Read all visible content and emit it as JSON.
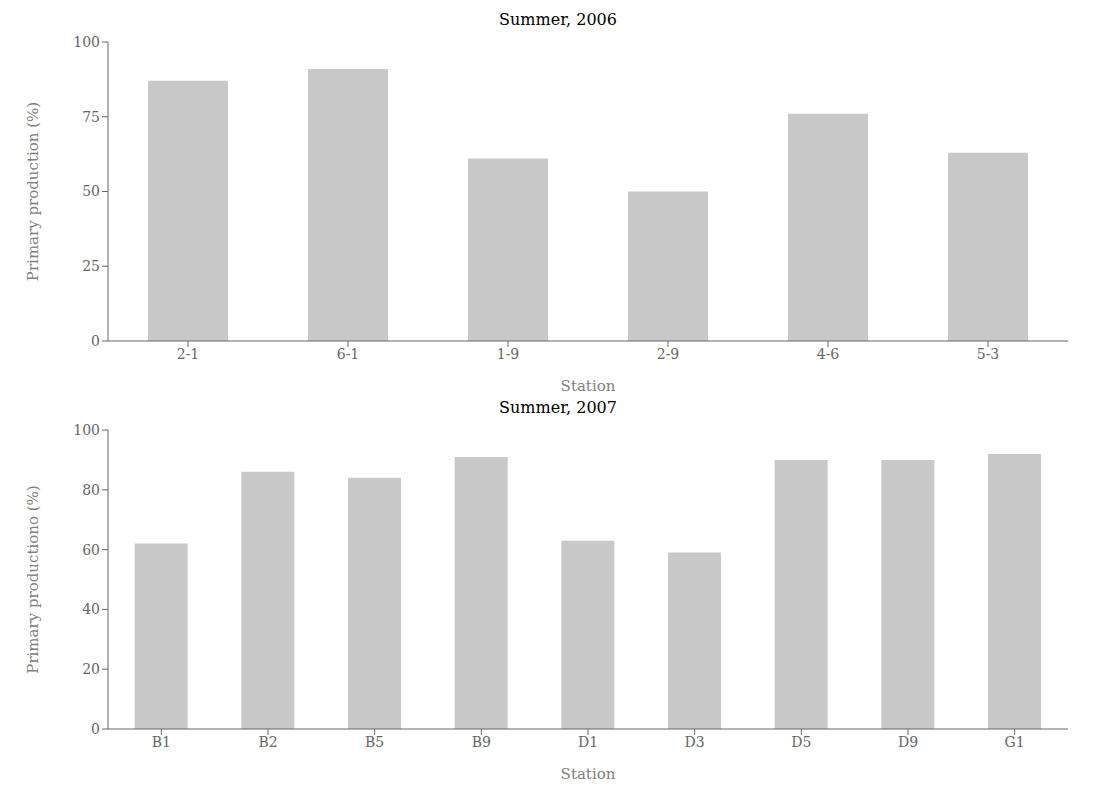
{
  "chart_data": [
    {
      "type": "bar",
      "title": "Summer, 2006",
      "categories": [
        "2-1",
        "6-1",
        "1-9",
        "2-9",
        "4-6",
        "5-3"
      ],
      "values": [
        87,
        91,
        61,
        50,
        76,
        63
      ],
      "xlabel": "Station",
      "ylabel": "Primary production (%)",
      "ylim": [
        0,
        100
      ],
      "yticks": [
        0,
        25,
        50,
        75,
        100
      ],
      "color": "#c8c8c8",
      "grid": false
    },
    {
      "type": "bar",
      "title": "Summer, 2007",
      "categories": [
        "B1",
        "B2",
        "B5",
        "B9",
        "D1",
        "D3",
        "D5",
        "D9",
        "G1"
      ],
      "values": [
        62,
        86,
        84,
        91,
        63,
        59,
        90,
        90,
        92
      ],
      "xlabel": "Station",
      "ylabel": "Primary productiono (%)",
      "ylim": [
        0,
        100
      ],
      "yticks": [
        0,
        20,
        40,
        60,
        80,
        100
      ],
      "color": "#c8c8c8",
      "grid": false
    }
  ]
}
